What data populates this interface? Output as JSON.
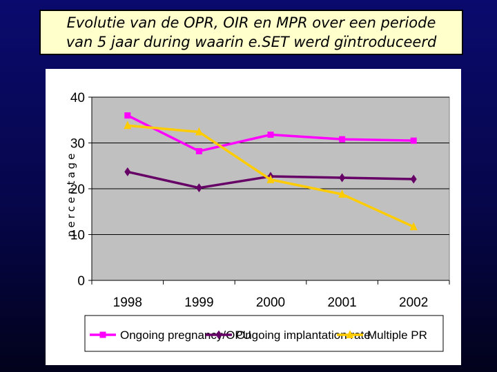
{
  "title": {
    "line1": "Evolutie van de OPR, OIR en MPR over een periode",
    "line2": "van 5 jaar during waarin e.SET werd gïntroduceerd"
  },
  "chart_data": {
    "type": "line",
    "title": "Evolutie van de OPR, OIR en MPR over een periode van 5 jaar during waarin e.SET werd gïntroduceerd",
    "xlabel": "",
    "ylabel": "percentage",
    "categories": [
      "1998",
      "1999",
      "2000",
      "2001",
      "2002"
    ],
    "ylim": [
      0,
      40
    ],
    "yticks": [
      "0",
      "10",
      "20",
      "30",
      "40"
    ],
    "grid": true,
    "legend_position": "bottom",
    "series": [
      {
        "name": "Ongoing pregnancy/OPU",
        "values": [
          36,
          28.2,
          31.8,
          30.8,
          30.5
        ],
        "color": "#ff00ff",
        "marker": "square"
      },
      {
        "name": "Ongoing implantation rate",
        "values": [
          23.7,
          20.2,
          22.7,
          22.4,
          22.1
        ],
        "color": "#660066",
        "marker": "diamond"
      },
      {
        "name": "Multiple PR",
        "values": [
          33.8,
          32.4,
          22,
          18.8,
          11.7
        ],
        "color": "#ffcc00",
        "marker": "triangle"
      }
    ]
  }
}
